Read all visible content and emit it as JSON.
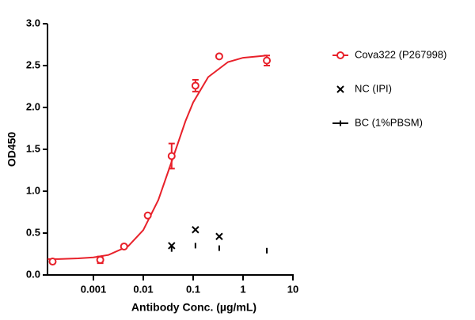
{
  "chart_data": {
    "type": "scatter",
    "x_label": "Antibody Conc. (µg/mL)",
    "y_label": "OD450",
    "xscale": "log",
    "xlim": [
      0.00012,
      10
    ],
    "xticks": [
      0.001,
      0.01,
      0.1,
      1,
      10
    ],
    "ylim": [
      0,
      3
    ],
    "yticks": [
      {
        "value": 0,
        "label": "0.0"
      },
      {
        "value": 0.5,
        "label": "0.5"
      },
      {
        "value": 1,
        "label": "1.0"
      },
      {
        "value": 1.5,
        "label": "1.5"
      },
      {
        "value": 2,
        "label": "2.0"
      },
      {
        "value": 2.5,
        "label": "2.5"
      },
      {
        "value": 3,
        "label": "3.0"
      }
    ],
    "series": [
      {
        "name": "Cova322 (P267998)",
        "color": "#e8212a",
        "marker": "circle",
        "x": [
          0.000152,
          0.00137,
          0.00412,
          0.0123,
          0.037,
          0.111,
          0.333,
          3
        ],
        "values": [
          0.16,
          0.18,
          0.34,
          0.71,
          1.42,
          2.26,
          2.61,
          2.56
        ],
        "errors": [
          null,
          0.04,
          null,
          null,
          0.15,
          0.07,
          null,
          0.06
        ],
        "curve": {
          "x": [
            0.00012,
            0.0002,
            0.0005,
            0.001,
            0.002,
            0.005,
            0.01,
            0.02,
            0.04,
            0.07,
            0.1,
            0.2,
            0.5,
            1,
            3
          ],
          "y": [
            0.19,
            0.19,
            0.198,
            0.21,
            0.239,
            0.343,
            0.536,
            0.895,
            1.41,
            1.835,
            2.06,
            2.363,
            2.542,
            2.593,
            2.621
          ]
        }
      },
      {
        "name": "NC (IPI)",
        "color": "#000000",
        "marker": "x",
        "x": [
          0.037,
          0.111,
          0.333
        ],
        "values": [
          0.35,
          0.54,
          0.46
        ]
      },
      {
        "name": "BC (1%PBSM)",
        "color": "#000000",
        "marker": "dash",
        "x": [
          0.037,
          0.111,
          0.333,
          3
        ],
        "values": [
          0.31,
          0.35,
          0.32,
          0.29
        ]
      }
    ]
  }
}
